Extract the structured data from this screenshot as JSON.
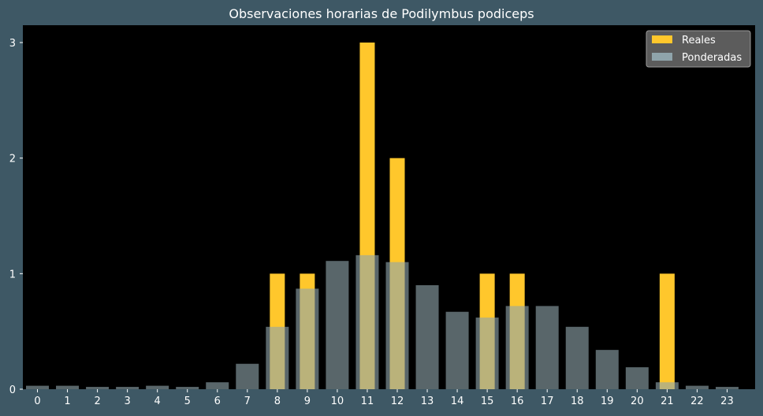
{
  "chart_data": {
    "type": "bar",
    "title": "Observaciones horarias de Podilymbus podiceps",
    "xlabel": "",
    "ylabel": "",
    "categories": [
      "0",
      "1",
      "2",
      "3",
      "4",
      "5",
      "6",
      "7",
      "8",
      "9",
      "10",
      "11",
      "12",
      "13",
      "14",
      "15",
      "16",
      "17",
      "18",
      "19",
      "20",
      "21",
      "22",
      "23"
    ],
    "ylim": [
      0,
      3.15
    ],
    "yticks": [
      "0",
      "1",
      "2",
      "3"
    ],
    "grid": false,
    "legend_position": "top-right",
    "series": [
      {
        "name": "Reales",
        "color": "#ffc72c",
        "values": [
          0,
          0,
          0,
          0,
          0,
          0,
          0,
          0,
          1,
          1,
          0,
          3,
          2,
          0,
          0,
          1,
          1,
          0,
          0,
          0,
          0,
          1,
          0,
          0
        ]
      },
      {
        "name": "Ponderadas",
        "color": "#8fa4ab",
        "values": [
          0.03,
          0.03,
          0.02,
          0.02,
          0.03,
          0.02,
          0.06,
          0.22,
          0.54,
          0.87,
          1.11,
          1.16,
          1.1,
          0.9,
          0.67,
          0.62,
          0.72,
          0.72,
          0.54,
          0.34,
          0.19,
          0.06,
          0.03,
          0.02
        ]
      }
    ]
  },
  "colors": {
    "background": "#3e5865",
    "plot_background": "#000000",
    "text": "#ffffff"
  }
}
